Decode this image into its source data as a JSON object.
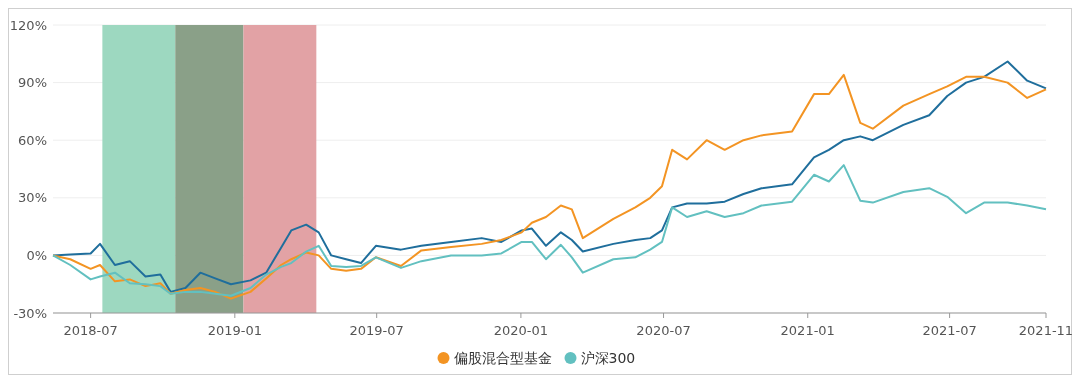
{
  "chart_data": {
    "type": "line",
    "x": [
      "2018-05-14",
      "2018-06-05",
      "2018-07-01",
      "2018-07-13",
      "2018-08-01",
      "2018-08-20",
      "2018-09-09",
      "2018-09-28",
      "2018-10-11",
      "2018-10-30",
      "2018-11-18",
      "2018-12-07",
      "2018-12-27",
      "2019-01-21",
      "2019-02-10",
      "2019-03-01",
      "2019-03-14",
      "2019-04-02",
      "2019-04-18",
      "2019-05-04",
      "2019-05-23",
      "2019-06-11",
      "2019-06-30",
      "2019-08-01",
      "2019-08-27",
      "2019-10-04",
      "2019-11-12",
      "2019-12-07",
      "2020-01-02",
      "2020-01-15",
      "2020-02-02",
      "2020-02-21",
      "2020-03-06",
      "2020-03-20",
      "2020-04-28",
      "2020-05-26",
      "2020-06-14",
      "2020-06-29",
      "2020-07-12",
      "2020-07-31",
      "2020-08-25",
      "2020-09-17",
      "2020-10-11",
      "2020-11-03",
      "2020-12-12",
      "2021-01-09",
      "2021-01-28",
      "2021-02-16",
      "2021-03-09",
      "2021-03-25",
      "2021-05-03",
      "2021-06-05",
      "2021-06-28",
      "2021-07-22",
      "2021-08-14",
      "2021-09-13",
      "2021-10-08",
      "2021-11-01"
    ],
    "series": [
      {
        "color": "#1f6e9c",
        "values": [
          0,
          0.5,
          1,
          6,
          -5,
          -3,
          -11,
          -10,
          -19,
          -17,
          -9,
          -12,
          -15,
          -13,
          -9,
          4,
          13,
          16,
          12,
          0,
          -2,
          -4,
          5,
          3,
          5,
          7,
          9,
          7,
          13,
          14,
          5,
          12,
          8,
          2,
          6,
          8,
          9,
          13,
          25,
          27,
          27,
          28,
          32,
          35,
          37,
          51,
          55,
          60,
          62,
          60,
          68,
          73,
          83,
          90,
          93,
          101,
          91,
          87
        ]
      },
      {
        "name": "偏股混合型基金",
        "color": "#f39423",
        "values": [
          0,
          -2,
          -7,
          -5,
          -13.5,
          -12.5,
          -16,
          -14.5,
          -20,
          -18,
          -17,
          -19,
          -22.5,
          -19,
          -12,
          -5,
          -2,
          1.5,
          0,
          -7,
          -8,
          -7,
          -1,
          -5.5,
          2.6,
          4.4,
          6,
          8,
          12,
          17,
          20,
          26,
          24,
          9,
          19,
          25,
          30,
          36,
          55,
          50,
          60,
          55,
          60,
          62.5,
          64.5,
          84,
          84,
          94,
          69,
          66,
          78,
          84,
          88,
          93,
          93,
          90,
          82,
          86.5
        ]
      },
      {
        "name": "沪深300",
        "color": "#62c0c0",
        "values": [
          0,
          -5,
          -12.5,
          -11,
          -9,
          -14.5,
          -15,
          -16,
          -20,
          -19,
          -19,
          -20,
          -21,
          -17,
          -10,
          -6,
          -4,
          2,
          5,
          -5.5,
          -6,
          -5.5,
          -1,
          -6.5,
          -3,
          0,
          0,
          1,
          7,
          7,
          -2,
          5.5,
          -1,
          -9,
          -2,
          -1,
          3,
          7,
          25,
          20,
          23,
          20,
          22,
          26,
          28,
          42,
          38.5,
          47,
          28.5,
          27.5,
          33,
          35,
          30.5,
          22,
          27.5,
          27.5,
          26,
          24
        ]
      }
    ],
    "xlim": [
      "2018-05-14",
      "2021-11-01"
    ],
    "xticks": [
      {
        "value": "2018-07-01",
        "label": "2018-07"
      },
      {
        "value": "2019-01-01",
        "label": "2019-01"
      },
      {
        "value": "2019-07-01",
        "label": "2019-07"
      },
      {
        "value": "2020-01-01",
        "label": "2020-01"
      },
      {
        "value": "2020-07-01",
        "label": "2020-07"
      },
      {
        "value": "2021-01-01",
        "label": "2021-01"
      },
      {
        "value": "2021-07-01",
        "label": "2021-07"
      },
      {
        "value": "2021-11-01",
        "label": "2021-11"
      }
    ],
    "ylim": [
      -30,
      120
    ],
    "yticks": [
      {
        "value": -30,
        "label": "-30%"
      },
      {
        "value": 0,
        "label": "0%"
      },
      {
        "value": 30,
        "label": "30%"
      },
      {
        "value": 60,
        "label": "60%"
      },
      {
        "value": 90,
        "label": "90%"
      },
      {
        "value": 120,
        "label": "120%"
      }
    ],
    "bands": [
      {
        "axis": "x",
        "from": "2018-07-16",
        "to": "2018-10-17",
        "color": "#9dd8c0"
      },
      {
        "axis": "x",
        "from": "2018-10-17",
        "to": "2019-01-12",
        "color": "#8aa088"
      },
      {
        "axis": "x",
        "from": "2019-01-12",
        "to": "2019-04-15",
        "color": "#e2a2a5"
      }
    ],
    "grid": "y",
    "legend": "bottom",
    "line_style": "solid",
    "marker": "none"
  }
}
